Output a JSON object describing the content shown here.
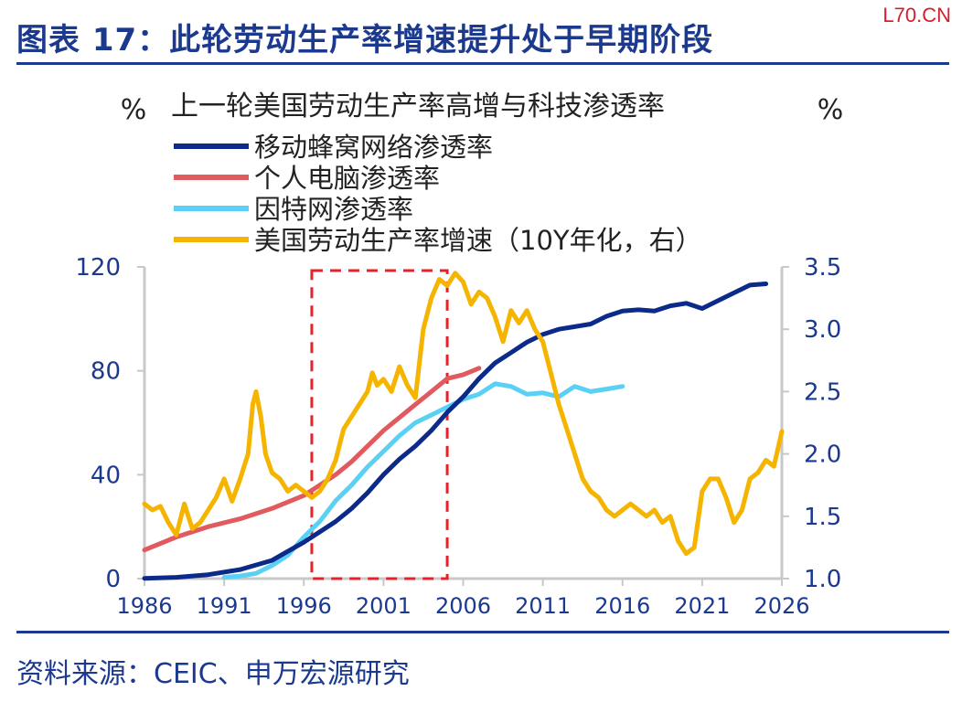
{
  "header": {
    "title": "图表 17：此轮劳动生产率增速提升处于早期阶段",
    "watermark": "L70.CN"
  },
  "footer": {
    "source": "资料来源：CEIC、申万宏源研究"
  },
  "colors": {
    "brand": "#1b3a8f",
    "mobile": "#0b2a8a",
    "pc": "#e05a5e",
    "internet": "#5ad0f5",
    "productivity": "#f5b400",
    "highlight_box": "#e8202a",
    "axis": "#c8c8c8"
  },
  "chart_data": {
    "type": "line",
    "title": "上一轮美国劳动生产率高增与科技渗透率",
    "y_left_unit": "%",
    "y_right_unit": "%",
    "xlim": [
      1986,
      2026
    ],
    "x_ticks": [
      "1986",
      "1991",
      "1996",
      "2001",
      "2006",
      "2011",
      "2016",
      "2021",
      "2026"
    ],
    "y_left": {
      "range": [
        0,
        120
      ],
      "ticks": [
        "0",
        "40",
        "80",
        "120"
      ]
    },
    "y_right": {
      "range": [
        1.0,
        3.5
      ],
      "ticks": [
        "1.0",
        "1.5",
        "2.0",
        "2.5",
        "3.0",
        "3.5"
      ]
    },
    "highlight_period": [
      1996.5,
      2005
    ],
    "legend_position": "top-left",
    "series": [
      {
        "name": "移动蜂窝网络渗透率",
        "axis": "left",
        "color": "#0b2a8a",
        "points": [
          [
            1986,
            0.1
          ],
          [
            1988,
            0.5
          ],
          [
            1990,
            1.5
          ],
          [
            1992,
            3.5
          ],
          [
            1994,
            7
          ],
          [
            1996,
            14
          ],
          [
            1997,
            18
          ],
          [
            1998,
            22
          ],
          [
            1999,
            27
          ],
          [
            2000,
            33
          ],
          [
            2001,
            40
          ],
          [
            2002,
            46
          ],
          [
            2003,
            51
          ],
          [
            2004,
            57
          ],
          [
            2005,
            64
          ],
          [
            2006,
            70
          ],
          [
            2007,
            77
          ],
          [
            2008,
            83
          ],
          [
            2009,
            87
          ],
          [
            2010,
            91
          ],
          [
            2011,
            94
          ],
          [
            2012,
            96
          ],
          [
            2013,
            97
          ],
          [
            2014,
            98
          ],
          [
            2015,
            101
          ],
          [
            2016,
            103
          ],
          [
            2017,
            103.5
          ],
          [
            2018,
            103
          ],
          [
            2019,
            105
          ],
          [
            2020,
            106
          ],
          [
            2021,
            104
          ],
          [
            2022,
            107
          ],
          [
            2023,
            110
          ],
          [
            2024,
            113
          ],
          [
            2025,
            113.5
          ]
        ]
      },
      {
        "name": "个人电脑渗透率",
        "axis": "left",
        "color": "#e05a5e",
        "points": [
          [
            1986,
            11
          ],
          [
            1988,
            16
          ],
          [
            1990,
            20
          ],
          [
            1992,
            23
          ],
          [
            1994,
            27
          ],
          [
            1996,
            32
          ],
          [
            1997,
            36
          ],
          [
            1998,
            40
          ],
          [
            1999,
            45
          ],
          [
            2000,
            51
          ],
          [
            2001,
            57
          ],
          [
            2002,
            62
          ],
          [
            2003,
            67
          ],
          [
            2004,
            72
          ],
          [
            2005,
            77
          ],
          [
            2006,
            78.5
          ],
          [
            2007,
            81
          ]
        ]
      },
      {
        "name": "因特网渗透率",
        "axis": "left",
        "color": "#5ad0f5",
        "points": [
          [
            1991,
            0.5
          ],
          [
            1992,
            1
          ],
          [
            1993,
            2
          ],
          [
            1994,
            5
          ],
          [
            1995,
            9
          ],
          [
            1996,
            16
          ],
          [
            1997,
            22
          ],
          [
            1998,
            30
          ],
          [
            1999,
            36
          ],
          [
            2000,
            43
          ],
          [
            2001,
            49
          ],
          [
            2002,
            55
          ],
          [
            2003,
            60
          ],
          [
            2004,
            63
          ],
          [
            2005,
            66
          ],
          [
            2006,
            69
          ],
          [
            2007,
            71
          ],
          [
            2008,
            75
          ],
          [
            2009,
            74
          ],
          [
            2010,
            71
          ],
          [
            2011,
            71.5
          ],
          [
            2012,
            70
          ],
          [
            2013,
            74
          ],
          [
            2014,
            72
          ],
          [
            2015,
            73
          ],
          [
            2016,
            74
          ]
        ]
      },
      {
        "name": "美国劳动生产率增速（10Y年化，右）",
        "axis": "right",
        "color": "#f5b400",
        "points": [
          [
            1986,
            1.6
          ],
          [
            1986.5,
            1.55
          ],
          [
            1987,
            1.58
          ],
          [
            1987.5,
            1.45
          ],
          [
            1988,
            1.35
          ],
          [
            1988.5,
            1.6
          ],
          [
            1989,
            1.4
          ],
          [
            1989.5,
            1.45
          ],
          [
            1990,
            1.55
          ],
          [
            1990.5,
            1.65
          ],
          [
            1991,
            1.8
          ],
          [
            1991.5,
            1.62
          ],
          [
            1992,
            1.8
          ],
          [
            1992.5,
            2.0
          ],
          [
            1992.8,
            2.4
          ],
          [
            1993,
            2.5
          ],
          [
            1993.3,
            2.3
          ],
          [
            1993.6,
            2.0
          ],
          [
            1994,
            1.85
          ],
          [
            1994.5,
            1.8
          ],
          [
            1995,
            1.7
          ],
          [
            1995.5,
            1.75
          ],
          [
            1996,
            1.7
          ],
          [
            1996.5,
            1.65
          ],
          [
            1997,
            1.7
          ],
          [
            1997.5,
            1.8
          ],
          [
            1998,
            1.95
          ],
          [
            1998.5,
            2.2
          ],
          [
            1999,
            2.3
          ],
          [
            1999.5,
            2.4
          ],
          [
            2000,
            2.5
          ],
          [
            2000.3,
            2.65
          ],
          [
            2000.6,
            2.55
          ],
          [
            2001,
            2.6
          ],
          [
            2001.5,
            2.5
          ],
          [
            2002,
            2.7
          ],
          [
            2002.5,
            2.55
          ],
          [
            2003,
            2.45
          ],
          [
            2003.5,
            3.0
          ],
          [
            2004,
            3.25
          ],
          [
            2004.5,
            3.4
          ],
          [
            2005,
            3.35
          ],
          [
            2005.5,
            3.45
          ],
          [
            2006,
            3.38
          ],
          [
            2006.5,
            3.2
          ],
          [
            2007,
            3.3
          ],
          [
            2007.5,
            3.25
          ],
          [
            2008,
            3.1
          ],
          [
            2008.5,
            2.9
          ],
          [
            2009,
            3.15
          ],
          [
            2009.5,
            3.05
          ],
          [
            2010,
            3.15
          ],
          [
            2010.5,
            3.0
          ],
          [
            2011,
            2.9
          ],
          [
            2011.5,
            2.65
          ],
          [
            2012,
            2.4
          ],
          [
            2012.5,
            2.2
          ],
          [
            2013,
            2.0
          ],
          [
            2013.5,
            1.8
          ],
          [
            2014,
            1.7
          ],
          [
            2014.5,
            1.65
          ],
          [
            2015,
            1.55
          ],
          [
            2015.5,
            1.5
          ],
          [
            2016,
            1.55
          ],
          [
            2016.5,
            1.6
          ],
          [
            2017,
            1.55
          ],
          [
            2017.5,
            1.5
          ],
          [
            2018,
            1.55
          ],
          [
            2018.5,
            1.45
          ],
          [
            2019,
            1.5
          ],
          [
            2019.5,
            1.3
          ],
          [
            2020,
            1.2
          ],
          [
            2020.5,
            1.25
          ],
          [
            2021,
            1.7
          ],
          [
            2021.5,
            1.8
          ],
          [
            2022,
            1.8
          ],
          [
            2022.5,
            1.65
          ],
          [
            2023,
            1.45
          ],
          [
            2023.5,
            1.55
          ],
          [
            2024,
            1.8
          ],
          [
            2024.5,
            1.85
          ],
          [
            2025,
            1.95
          ],
          [
            2025.5,
            1.9
          ],
          [
            2026,
            2.18
          ]
        ]
      }
    ]
  }
}
